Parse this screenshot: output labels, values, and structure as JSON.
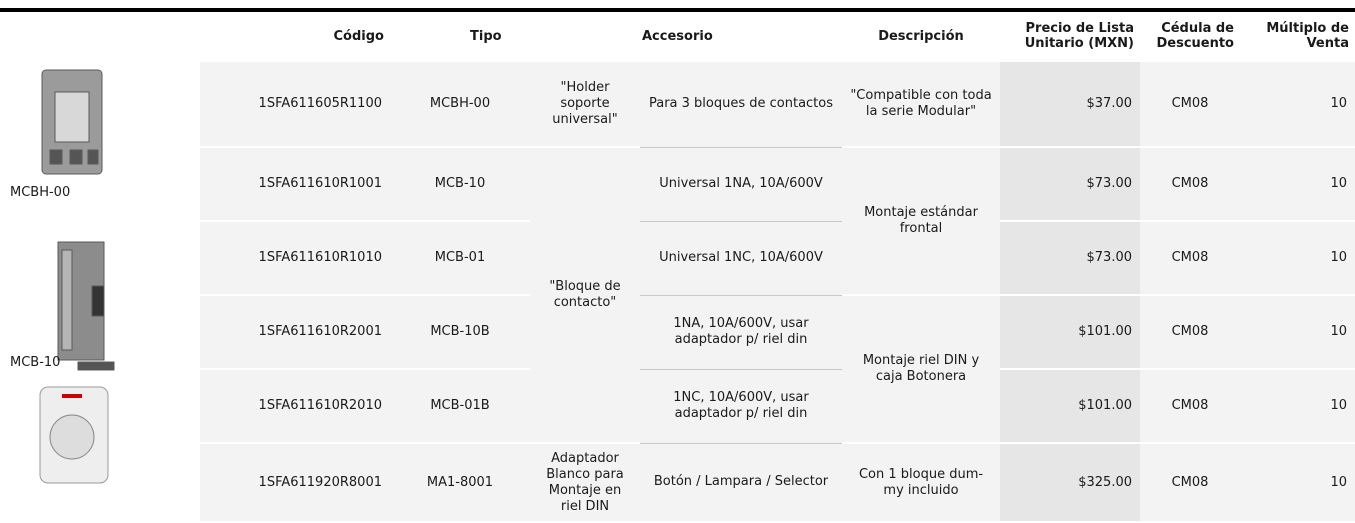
{
  "header": {
    "columns": [
      "Código",
      "Tipo",
      "Accesorio",
      "Descripción",
      "Precio de Lista Unitario (MXN)",
      "Cédula de Descuento",
      "Múltiplo de Venta"
    ]
  },
  "images": [
    {
      "label": "MCBH-00"
    },
    {
      "label": "MCB-10"
    }
  ],
  "table": {
    "rows": [
      [
        "1SFA611605R1100",
        "MCBH-00",
        "Para 3 bloques de contactos",
        "$37.00",
        "CM08",
        "10"
      ],
      [
        "1SFA611610R1001",
        "MCB-10",
        "Universal 1NA, 10A/600V",
        "$73.00",
        "CM08",
        "10"
      ],
      [
        "1SFA611610R1010",
        "MCB-01",
        "Universal 1NC, 10A/600V",
        "$73.00",
        "CM08",
        "10"
      ],
      [
        "1SFA611610R2001",
        "MCB-10B",
        "1NA, 10A/600V, usar adaptador p/ riel din",
        "$101.00",
        "CM08",
        "10"
      ],
      [
        "1SFA611610R2010",
        "MCB-01B",
        "1NC, 10A/600V,  usar adaptador p/ riel din",
        "$101.00",
        "CM08",
        "10"
      ],
      [
        "1SFA611920R8001",
        "MA1-8001",
        "Botón / Lampara / Selector",
        "$325.00",
        "CM08",
        "10"
      ]
    ],
    "tipo_groups": [
      "\"Holder soporte universal\"",
      "\"Bloque de contacto\"",
      "Adaptador Blanco para Montaje en riel DIN"
    ],
    "descripcion_groups": [
      "\"Compatible con toda la serie Modular\"",
      "Montaje estándar frontal",
      "Montaje riel DIN y caja Botonera",
      "Con 1 bloque dum-my incluido"
    ]
  }
}
